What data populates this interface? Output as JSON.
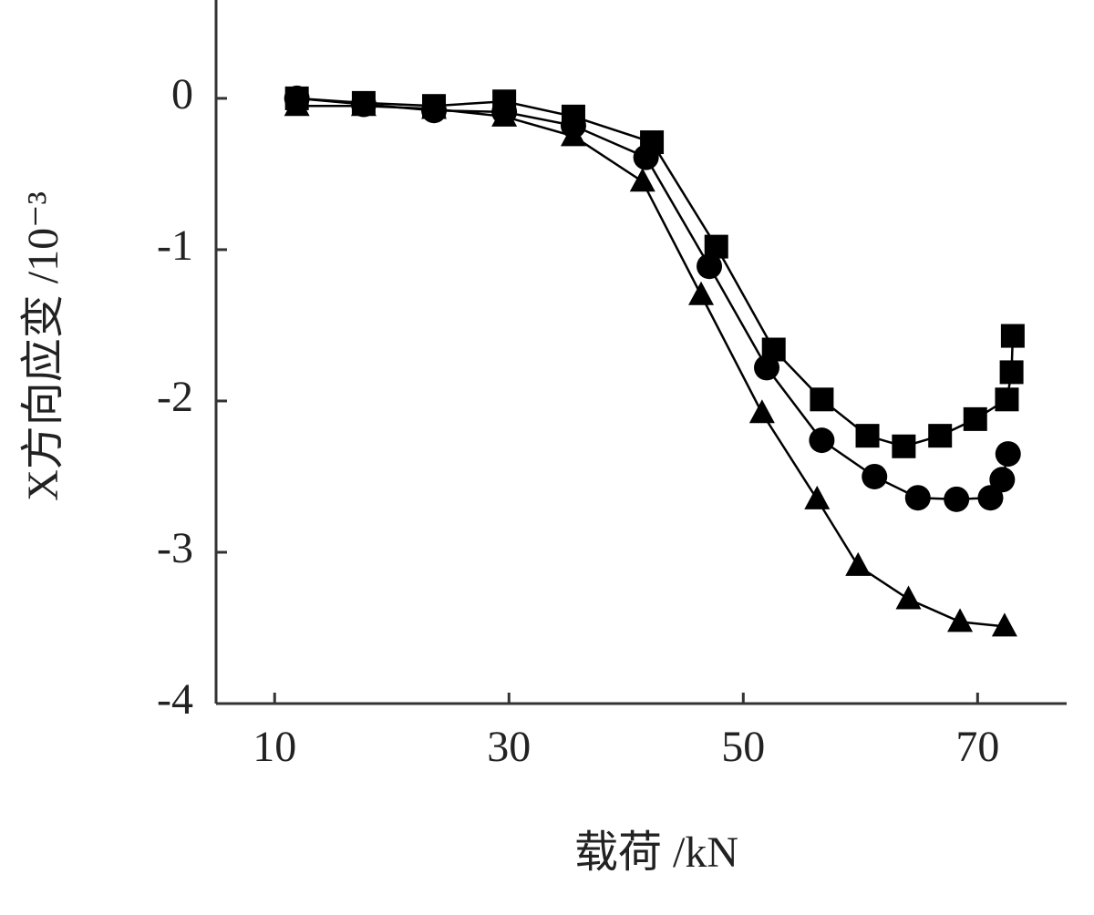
{
  "chart_data": {
    "type": "line",
    "xlabel": "载荷 /kN",
    "ylabel": "X方向应变 /10⁻³",
    "xlim": [
      5,
      77.6
    ],
    "xticks": [
      10,
      30,
      50,
      70
    ],
    "ylim": [
      -4,
      0.65
    ],
    "yticks": [
      0,
      -1,
      -2,
      -3,
      -4
    ],
    "series": [
      {
        "color": "#000000",
        "marker": "square",
        "x": [
          11.9,
          17.6,
          23.6,
          29.6,
          35.5,
          42.2,
          47.7,
          52.6,
          56.7,
          60.6,
          63.7,
          66.8,
          69.8,
          72.5,
          72.9,
          73.0
        ],
        "values": [
          0,
          -0.03,
          -0.05,
          -0.02,
          -0.12,
          -0.29,
          -0.98,
          -1.66,
          -1.99,
          -2.23,
          -2.3,
          -2.23,
          -2.12,
          -1.99,
          -1.81,
          -1.57
        ]
      },
      {
        "color": "#000000",
        "marker": "circle",
        "x": [
          11.9,
          17.6,
          23.6,
          29.6,
          35.5,
          41.7,
          47.1,
          52.0,
          56.7,
          61.2,
          64.9,
          68.2,
          71.1,
          72.1,
          72.6
        ],
        "values": [
          0,
          -0.04,
          -0.08,
          -0.09,
          -0.18,
          -0.39,
          -1.11,
          -1.78,
          -2.26,
          -2.5,
          -2.64,
          -2.65,
          -2.64,
          -2.52,
          -2.35
        ]
      },
      {
        "color": "#000000",
        "marker": "triangle",
        "x": [
          11.9,
          17.6,
          23.6,
          29.6,
          35.5,
          41.4,
          46.4,
          51.6,
          56.3,
          59.8,
          64.1,
          68.5,
          72.3
        ],
        "values": [
          -0.05,
          -0.05,
          -0.07,
          -0.12,
          -0.25,
          -0.55,
          -1.3,
          -2.08,
          -2.65,
          -3.09,
          -3.31,
          -3.46,
          -3.49
        ]
      }
    ]
  }
}
